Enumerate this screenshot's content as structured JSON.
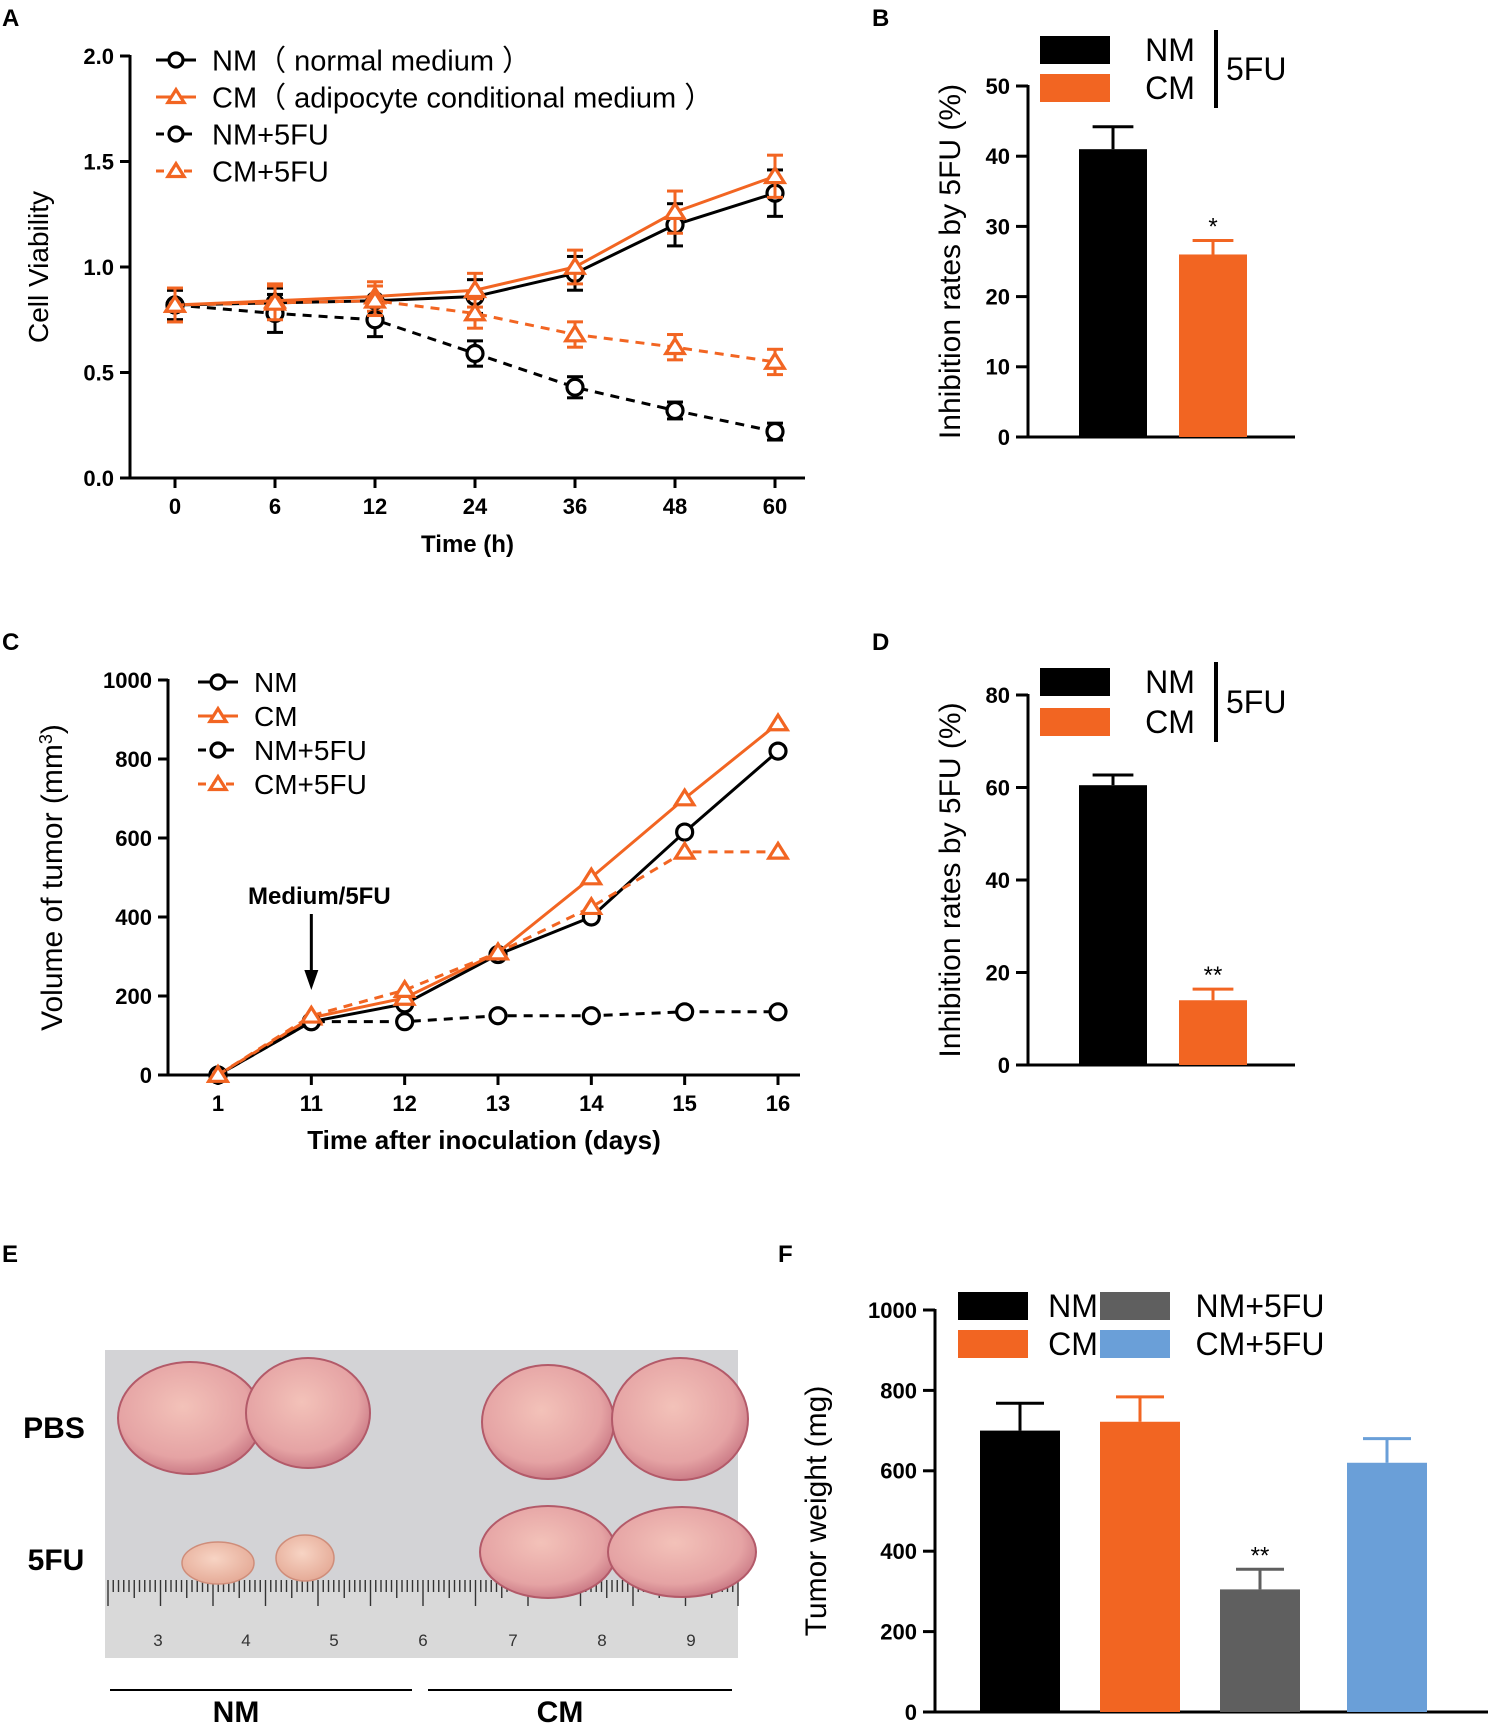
{
  "colors": {
    "black": "#000000",
    "orange": "#f26522",
    "gray": "#5f5f5f",
    "blue": "#6a9fd8",
    "tumor_dark": "#c4707e",
    "tumor_light": "#efb7ad",
    "photo_bg": "#d3d3d6",
    "ruler_bg": "#d9d9d9"
  },
  "chart_data": [
    {
      "panel": "A",
      "type": "line",
      "xlabel": "Time  (h)",
      "ylabel": "Cell Viability",
      "categories": [
        "0",
        "6",
        "12",
        "24",
        "36",
        "48",
        "60"
      ],
      "yticks": [
        "0.0",
        "0.5",
        "1.0",
        "1.5",
        "2.0"
      ],
      "ylim": [
        0,
        2.0
      ],
      "legend_position": "top-left",
      "series": [
        {
          "name": "NM（ normal medium ）",
          "marker": "circle",
          "dashed": false,
          "color": "black",
          "values": [
            0.82,
            0.83,
            0.84,
            0.86,
            0.97,
            1.2,
            1.35
          ],
          "errors": [
            0.07,
            0.07,
            0.07,
            0.08,
            0.08,
            0.1,
            0.11
          ]
        },
        {
          "name": "CM（ adipocyte conditional medium ）",
          "marker": "triangle",
          "dashed": false,
          "color": "orange",
          "values": [
            0.82,
            0.84,
            0.86,
            0.89,
            1.0,
            1.26,
            1.43
          ],
          "errors": [
            0.08,
            0.08,
            0.07,
            0.08,
            0.08,
            0.1,
            0.1
          ]
        },
        {
          "name": "NM+5FU",
          "marker": "circle",
          "dashed": true,
          "color": "black",
          "values": [
            0.82,
            0.78,
            0.75,
            0.59,
            0.43,
            0.32,
            0.22
          ],
          "errors": [
            0.07,
            0.09,
            0.08,
            0.06,
            0.05,
            0.04,
            0.04
          ]
        },
        {
          "name": "CM+5FU",
          "marker": "triangle",
          "dashed": true,
          "color": "orange",
          "values": [
            0.82,
            0.83,
            0.84,
            0.78,
            0.68,
            0.62,
            0.55
          ],
          "errors": [
            0.08,
            0.08,
            0.07,
            0.07,
            0.06,
            0.06,
            0.06
          ]
        }
      ]
    },
    {
      "panel": "B",
      "type": "bar",
      "ylabel": "Inhibition rates by 5FU (%)",
      "categories": [
        "NM",
        "CM"
      ],
      "values": [
        41,
        26
      ],
      "errors": [
        3.2,
        2.0
      ],
      "bar_colors": [
        "black",
        "orange"
      ],
      "significance": [
        "",
        "*"
      ],
      "yticks": [
        "0",
        "10",
        "20",
        "30",
        "40",
        "50"
      ],
      "ylim": [
        0,
        50
      ],
      "legend_group": "5FU",
      "legend_position": "top-right"
    },
    {
      "panel": "C",
      "type": "line",
      "xlabel": "Time after inoculation (days)",
      "ylabel": "Volume of tumor (mm3)",
      "ylabel_base": "Volume of tumor (mm",
      "ylabel_sup": "3",
      "ylabel_end": ")",
      "categories": [
        "1",
        "11",
        "12",
        "13",
        "14",
        "15",
        "16"
      ],
      "yticks": [
        "0",
        "200",
        "400",
        "600",
        "800",
        "1000"
      ],
      "ylim": [
        0,
        1000
      ],
      "annotation": "Medium/5FU",
      "annotation_at": "11",
      "legend_position": "top-left",
      "series": [
        {
          "name": "NM",
          "marker": "circle",
          "dashed": false,
          "color": "black",
          "values": [
            0,
            135,
            180,
            305,
            400,
            615,
            820
          ]
        },
        {
          "name": "CM",
          "marker": "triangle",
          "dashed": false,
          "color": "orange",
          "values": [
            0,
            145,
            195,
            310,
            500,
            700,
            890
          ]
        },
        {
          "name": "NM+5FU",
          "marker": "circle",
          "dashed": true,
          "color": "black",
          "values": [
            0,
            135,
            135,
            150,
            150,
            160,
            160
          ]
        },
        {
          "name": "CM+5FU",
          "marker": "triangle",
          "dashed": true,
          "color": "orange",
          "values": [
            0,
            150,
            215,
            310,
            425,
            565,
            565
          ]
        }
      ]
    },
    {
      "panel": "D",
      "type": "bar",
      "ylabel": "Inhibition rates by 5FU (%)",
      "categories": [
        "NM",
        "CM"
      ],
      "values": [
        60.5,
        14
      ],
      "errors": [
        2.2,
        2.4
      ],
      "bar_colors": [
        "black",
        "orange"
      ],
      "significance": [
        "",
        "**"
      ],
      "yticks": [
        "0",
        "20",
        "40",
        "60",
        "80"
      ],
      "ylim": [
        0,
        80
      ],
      "legend_group": "5FU",
      "legend_position": "top-right"
    },
    {
      "panel": "F",
      "type": "bar",
      "ylabel": "Tumor weight (mg)",
      "categories": [
        "NM",
        "CM",
        "NM+5FU",
        "CM+5FU"
      ],
      "values": [
        700,
        722,
        305,
        620
      ],
      "errors": [
        68,
        62,
        50,
        60
      ],
      "bar_colors": [
        "black",
        "orange",
        "gray",
        "blue"
      ],
      "significance": [
        "",
        "",
        "**",
        ""
      ],
      "yticks": [
        "0",
        "200",
        "400",
        "600",
        "800",
        "1000"
      ],
      "ylim": [
        0,
        1000
      ],
      "legend_position": "top"
    }
  ],
  "panel_e": {
    "panel": "E",
    "row_labels": [
      "PBS",
      "5FU"
    ],
    "group_labels": [
      "NM",
      "CM"
    ],
    "ruler_numbers": [
      "3",
      "4",
      "5",
      "6",
      "7",
      "8",
      "9"
    ]
  }
}
